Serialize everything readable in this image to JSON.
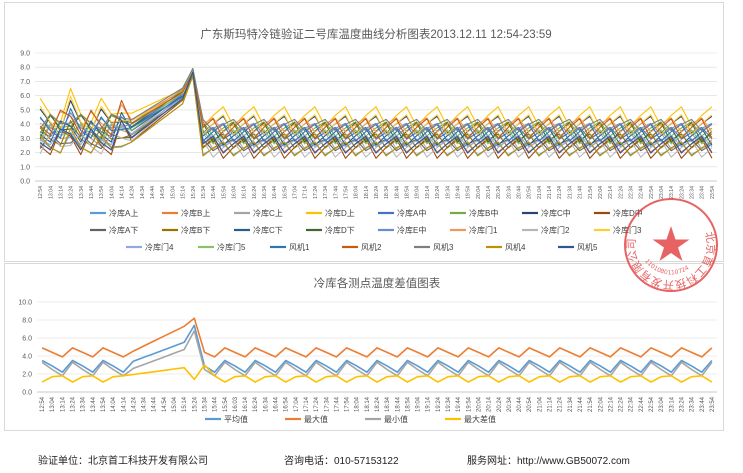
{
  "chart_data": [
    {
      "type": "line",
      "title": "广东斯玛特冷链验证二号库温度曲线分析图表2013.12.11  12:54-23:59",
      "xlabel": "",
      "ylabel": "",
      "ylim": [
        0,
        9
      ],
      "yticks": [
        "0.0",
        "1.0",
        "2.0",
        "3.0",
        "4.0",
        "5.0",
        "6.0",
        "7.0",
        "8.0",
        "9.0"
      ],
      "grid": true,
      "legend_position": "bottom",
      "x": [
        "12:54",
        "13:04",
        "13:14",
        "13:24",
        "13:34",
        "13:44",
        "13:54",
        "14:04",
        "14:14",
        "14:24",
        "14:34",
        "14:44",
        "14:54",
        "15:04",
        "15:14",
        "15:24",
        "15:34",
        "15:44",
        "15:54",
        "16:04",
        "16:14",
        "16:24",
        "16:34",
        "16:44",
        "16:54",
        "17:04",
        "17:14",
        "17:24",
        "17:34",
        "17:44",
        "17:54",
        "18:04",
        "18:14",
        "18:24",
        "18:34",
        "18:44",
        "18:54",
        "19:04",
        "19:14",
        "19:24",
        "19:34",
        "19:44",
        "19:54",
        "20:04",
        "20:14",
        "20:24",
        "20:34",
        "20:44",
        "20:54",
        "21:04",
        "21:14",
        "21:24",
        "21:34",
        "21:44",
        "21:54",
        "22:04",
        "22:14",
        "22:24",
        "22:34",
        "22:44",
        "22:54",
        "23:04",
        "23:14",
        "23:24",
        "23:34",
        "23:44",
        "23:54"
      ],
      "series": [
        {
          "name": "冷库A上",
          "color": "#5b9bd5"
        },
        {
          "name": "冷库B上",
          "color": "#ed7d31"
        },
        {
          "name": "冷库C上",
          "color": "#a5a5a5"
        },
        {
          "name": "冷库D上",
          "color": "#ffc000"
        },
        {
          "name": "冷库A中",
          "color": "#4472c4"
        },
        {
          "name": "冷库B中",
          "color": "#70ad47"
        },
        {
          "name": "冷库C中",
          "color": "#264478"
        },
        {
          "name": "冷库D中",
          "color": "#9e480e"
        },
        {
          "name": "冷库A下",
          "color": "#636363"
        },
        {
          "name": "冷库B下",
          "color": "#997300"
        },
        {
          "name": "冷库C下",
          "color": "#255e91"
        },
        {
          "name": "冷库D下",
          "color": "#43682b"
        },
        {
          "name": "冷库E中",
          "color": "#698ed0"
        },
        {
          "name": "冷库门1",
          "color": "#f1975a"
        },
        {
          "name": "冷库门2",
          "color": "#b7b7b7"
        },
        {
          "name": "冷库门3",
          "color": "#ffcd33"
        },
        {
          "name": "冷库门4",
          "color": "#8faadc"
        },
        {
          "name": "冷库门5",
          "color": "#8cc168"
        },
        {
          "name": "风机1",
          "color": "#2e75b6"
        },
        {
          "name": "风机2",
          "color": "#c55a11"
        },
        {
          "name": "风机3",
          "color": "#7f7f7f"
        },
        {
          "name": "风机4",
          "color": "#bf9000"
        },
        {
          "name": "风机5",
          "color": "#2f5597"
        }
      ]
    },
    {
      "type": "line",
      "title": "冷库各测点温度差值图表",
      "xlabel": "",
      "ylabel": "",
      "ylim": [
        0,
        10
      ],
      "yticks": [
        "0.0",
        "2.0",
        "4.0",
        "6.0",
        "8.0",
        "10.0"
      ],
      "grid": true,
      "legend_position": "bottom",
      "x": [
        "12:54",
        "13:04",
        "13:14",
        "13:24",
        "13:34",
        "13:44",
        "13:54",
        "14:04",
        "14:14",
        "14:24",
        "14:34",
        "14:44",
        "14:54",
        "15:04",
        "15:14",
        "15:24",
        "15:34",
        "15:44",
        "15:54",
        "16:03",
        "16:14",
        "16:24",
        "16:34",
        "16:44",
        "16:54",
        "17:04",
        "17:14",
        "17:24",
        "17:34",
        "17:44",
        "17:54",
        "18:04",
        "18:14",
        "18:24",
        "18:34",
        "18:44",
        "18:54",
        "19:04",
        "19:14",
        "19:24",
        "19:34",
        "19:44",
        "19:54",
        "20:04",
        "20:14",
        "20:24",
        "20:34",
        "20:44",
        "20:54",
        "21:04",
        "21:14",
        "21:24",
        "21:34",
        "21:44",
        "21:54",
        "22:04",
        "22:14",
        "22:24",
        "22:34",
        "22:44",
        "22:54",
        "23:04",
        "23:14",
        "23:24",
        "23:34",
        "23:44",
        "23:54"
      ],
      "series": [
        {
          "name": "平均值",
          "color": "#5b9bd5"
        },
        {
          "name": "最大值",
          "color": "#ed7d31"
        },
        {
          "name": "最小值",
          "color": "#a5a5a5"
        },
        {
          "name": "最大差值",
          "color": "#ffc000"
        }
      ]
    }
  ],
  "stamp": {
    "text": "北京首工科技开发有限公司",
    "number": "1101080110724",
    "color": "#e03030"
  },
  "footer": {
    "company": "验证单位：北京首工科技开发有限公司",
    "phone": "咨询电话：010-57153122",
    "website": "服务网址：http://www.GB50072.com"
  }
}
